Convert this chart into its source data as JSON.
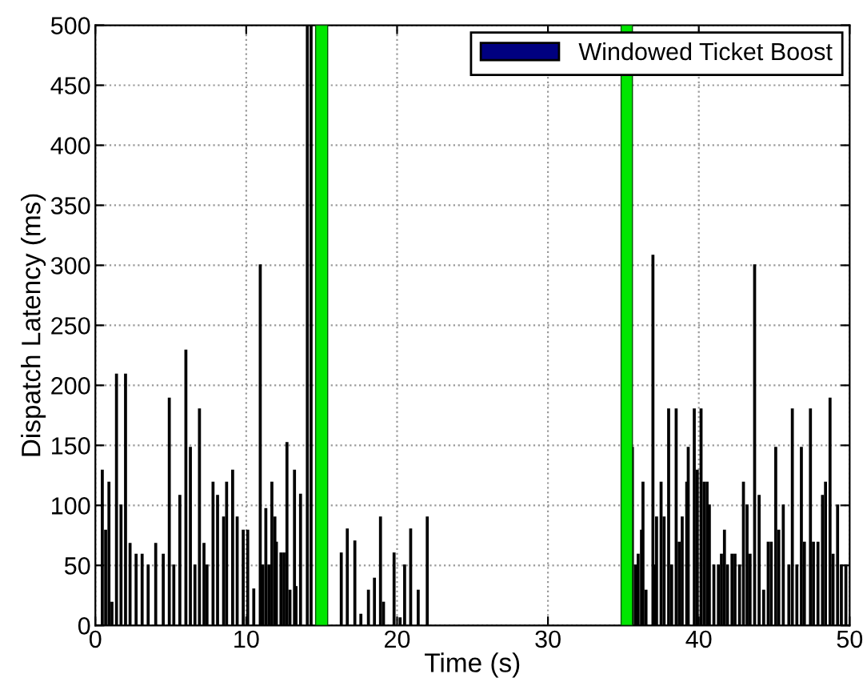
{
  "chart_data": {
    "type": "bar",
    "xlabel": "Time (s)",
    "ylabel": "Dispatch Latency (ms)",
    "xlim": [
      0,
      50
    ],
    "ylim": [
      0,
      500
    ],
    "xticks": [
      0,
      10,
      20,
      30,
      40,
      50
    ],
    "yticks": [
      0,
      50,
      100,
      150,
      200,
      250,
      300,
      350,
      400,
      450,
      500
    ],
    "grid": true,
    "legend": "top right",
    "bands": [
      {
        "axis": "x",
        "from": 14.6,
        "to": 15.4,
        "color": "#00e600"
      },
      {
        "axis": "x",
        "from": 34.85,
        "to": 35.6,
        "color": "#00e600"
      }
    ],
    "series": [
      {
        "name": "Windowed Ticket Boost",
        "color": "#000080",
        "x": [
          0.46,
          0.68,
          0.9,
          1.1,
          1.4,
          1.7,
          2.0,
          2.3,
          2.7,
          3.1,
          3.5,
          4.0,
          4.5,
          4.9,
          5.2,
          5.6,
          6.0,
          6.3,
          6.6,
          6.9,
          7.2,
          7.4,
          7.8,
          8.1,
          8.5,
          8.7,
          9.1,
          9.4,
          9.8,
          10.1,
          10.5,
          10.93,
          11.1,
          11.3,
          11.5,
          11.7,
          11.9,
          12.0,
          12.3,
          12.5,
          12.7,
          12.9,
          13.2,
          13.3,
          13.6,
          14.05,
          14.3,
          16.3,
          16.7,
          17.2,
          17.6,
          18.1,
          18.5,
          18.9,
          19.1,
          19.8,
          20.2,
          20.5,
          20.9,
          21.4,
          22.0,
          35.6,
          35.8,
          35.98,
          36.2,
          36.3,
          36.5,
          36.96,
          37.1,
          37.2,
          37.5,
          37.7,
          38.0,
          38.2,
          38.5,
          38.7,
          38.9,
          39.2,
          39.3,
          39.7,
          39.9,
          40.15,
          40.35,
          40.55,
          40.7,
          41.0,
          41.3,
          41.5,
          41.7,
          41.9,
          42.2,
          42.4,
          42.7,
          42.96,
          43.2,
          43.4,
          43.7,
          44.0,
          44.3,
          44.6,
          44.8,
          45.1,
          45.3,
          45.6,
          45.97,
          46.2,
          46.5,
          46.8,
          47.0,
          47.4,
          47.6,
          47.9,
          48.2,
          48.4,
          48.7,
          48.9,
          49.2,
          49.45,
          49.75
        ],
        "values": [
          129,
          79,
          119,
          19,
          209,
          100,
          209,
          68,
          59,
          59,
          50,
          68,
          59,
          189,
          50,
          108,
          229,
          148,
          50,
          180,
          68,
          50,
          119,
          108,
          90,
          119,
          129,
          90,
          79,
          79,
          30,
          300,
          50,
          97,
          50,
          119,
          90,
          69,
          60,
          60,
          152,
          29,
          129,
          32,
          109,
          500,
          500,
          60,
          80,
          70,
          9,
          29,
          39,
          90,
          19,
          60,
          6,
          50,
          80,
          29,
          90,
          148,
          50,
          59,
          79,
          119,
          29,
          308,
          50,
          90,
          119,
          90,
          180,
          50,
          180,
          69,
          90,
          119,
          148,
          180,
          129,
          180,
          119,
          119,
          100,
          50,
          50,
          59,
          79,
          50,
          59,
          59,
          50,
          119,
          100,
          59,
          300,
          108,
          29,
          69,
          69,
          148,
          79,
          100,
          50,
          180,
          50,
          148,
          69,
          180,
          69,
          69,
          108,
          119,
          189,
          59,
          100,
          50,
          50
        ]
      }
    ]
  }
}
